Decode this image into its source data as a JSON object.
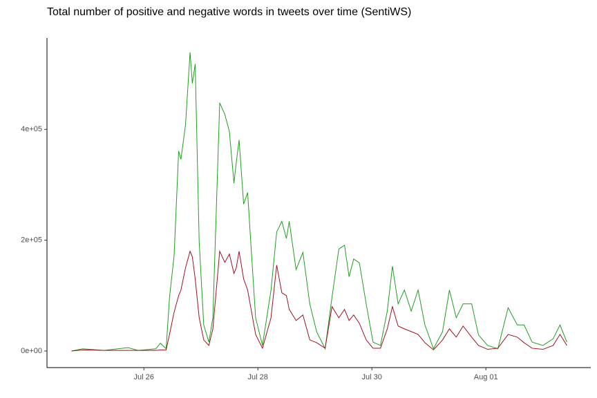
{
  "chart_data": {
    "type": "line",
    "title": "Total number of positive and negative words in tweets over time (SentiWS)",
    "x": [
      24.73,
      24.93,
      25.3,
      25.72,
      25.9,
      26.21,
      26.29,
      26.39,
      26.45,
      26.53,
      26.61,
      26.65,
      26.73,
      26.81,
      26.85,
      26.9,
      26.97,
      27.05,
      27.14,
      27.21,
      27.33,
      27.42,
      27.5,
      27.58,
      27.62,
      27.67,
      27.75,
      27.82,
      27.89,
      27.96,
      28.08,
      28.23,
      28.33,
      28.42,
      28.5,
      28.55,
      28.67,
      28.79,
      28.91,
      29.03,
      29.18,
      29.3,
      29.42,
      29.52,
      29.6,
      29.68,
      29.78,
      29.9,
      30.02,
      30.15,
      30.27,
      30.36,
      30.46,
      30.57,
      30.69,
      30.81,
      30.93,
      31.08,
      31.24,
      31.36,
      31.48,
      31.6,
      31.75,
      31.87,
      32.03,
      32.21,
      32.39,
      32.55,
      32.67,
      32.81,
      33.0,
      33.18,
      33.3,
      33.42
    ],
    "series": [
      {
        "color": "#1f9e1f",
        "values": [
          0,
          4000,
          1000,
          6000,
          1000,
          4000,
          14000,
          4000,
          97000,
          172000,
          361000,
          346000,
          408000,
          539000,
          483000,
          518000,
          197000,
          47000,
          16000,
          60000,
          448000,
          427000,
          396000,
          303000,
          340000,
          381000,
          265000,
          286000,
          172000,
          60000,
          10000,
          110000,
          215000,
          234000,
          203000,
          234000,
          147000,
          178000,
          85000,
          35000,
          4000,
          97000,
          184000,
          191000,
          134000,
          166000,
          159000,
          85000,
          16000,
          10000,
          72000,
          153000,
          85000,
          110000,
          72000,
          110000,
          47000,
          4000,
          35000,
          110000,
          60000,
          85000,
          85000,
          29000,
          10000,
          4000,
          78000,
          47000,
          47000,
          16000,
          10000,
          22000,
          47000,
          16000
        ]
      },
      {
        "color": "#9e1020",
        "values": [
          0,
          2000,
          1000,
          1000,
          1000,
          1000,
          2000,
          2000,
          30000,
          70000,
          100000,
          110000,
          150000,
          180000,
          170000,
          130000,
          60000,
          20000,
          10000,
          40000,
          180000,
          160000,
          175000,
          140000,
          150000,
          180000,
          130000,
          110000,
          70000,
          30000,
          5000,
          60000,
          155000,
          105000,
          100000,
          75000,
          55000,
          65000,
          20000,
          15000,
          5000,
          80000,
          60000,
          75000,
          55000,
          65000,
          50000,
          20000,
          5000,
          5000,
          40000,
          80000,
          45000,
          40000,
          35000,
          30000,
          15000,
          2000,
          20000,
          40000,
          25000,
          45000,
          25000,
          10000,
          3000,
          5000,
          30000,
          25000,
          15000,
          5000,
          3000,
          10000,
          30000,
          10000
        ]
      }
    ],
    "xlim": [
      24.3,
      33.84
    ],
    "xticks": [
      {
        "value": 26,
        "label": "Jul 26"
      },
      {
        "value": 28,
        "label": "Jul 28"
      },
      {
        "value": 30,
        "label": "Jul 30"
      },
      {
        "value": 32,
        "label": "Aug 01"
      }
    ],
    "ylim": [
      -30000,
      565000
    ],
    "yticks": [
      {
        "value": 0,
        "label": "0e+00"
      },
      {
        "value": 200000,
        "label": "2e+05"
      },
      {
        "value": 400000,
        "label": "4e+05"
      }
    ],
    "grid": false
  }
}
